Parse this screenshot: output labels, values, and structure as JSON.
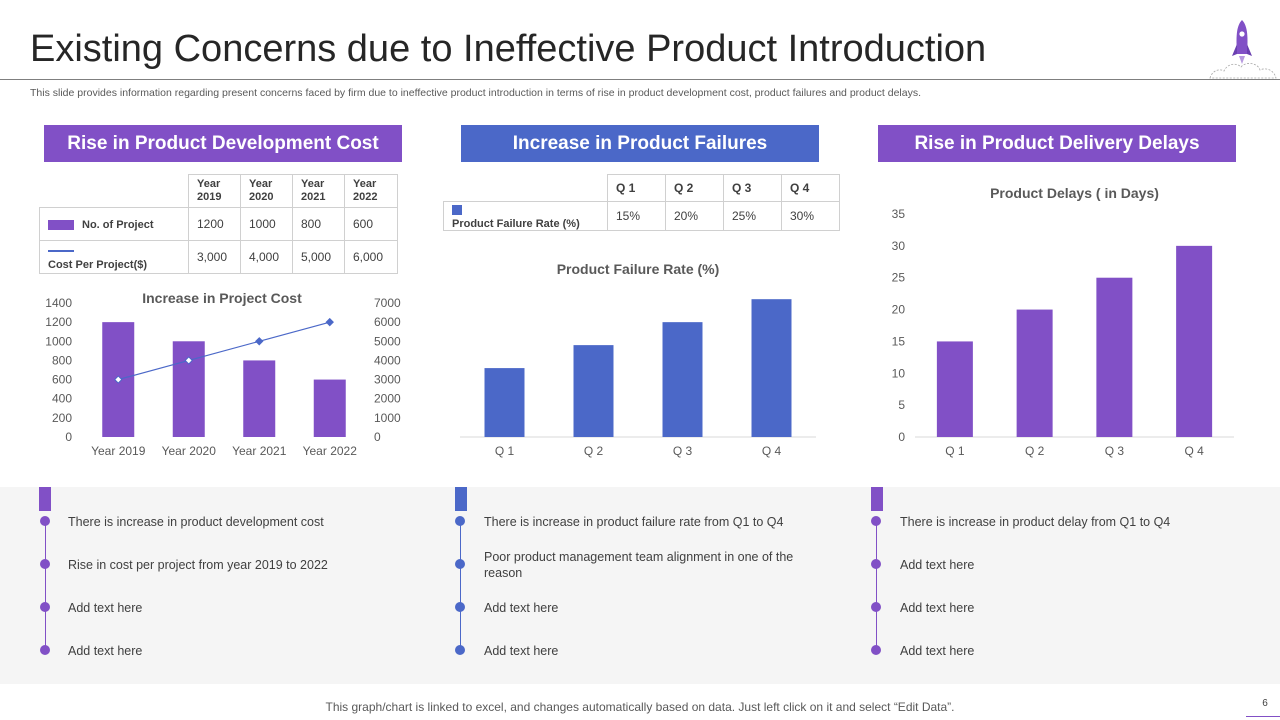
{
  "title": "Existing Concerns due to Ineffective Product Introduction",
  "subtitle": "This slide provides information regarding present concerns faced by firm due to ineffective product introduction in terms of rise in product development cost, product failures and product delays.",
  "colors": {
    "purple": "#8150c6",
    "blue": "#4b68c8",
    "grid": "#d9d9d9",
    "panel_bg": "#f5f5f5"
  },
  "columns": [
    {
      "heading": "Rise in Product Development Cost",
      "table": {
        "headers": [
          "Year 2019",
          "Year 2020",
          "Year 2021",
          "Year 2022"
        ],
        "rows": [
          {
            "label": "No. of Project",
            "values": [
              "1200",
              "1000",
              "800",
              "600"
            ]
          },
          {
            "label": "Cost Per Project($)",
            "values": [
              "3,000",
              "4,000",
              "5,000",
              "6,000"
            ]
          }
        ]
      },
      "points": [
        "There is increase in product development  cost",
        "Rise in cost per project from year 2019 to 2022",
        "Add text here",
        "Add text here"
      ]
    },
    {
      "heading": "Increase in Product Failures",
      "table": {
        "headers": [
          "Q 1",
          "Q 2",
          "Q 3",
          "Q 4"
        ],
        "rows": [
          {
            "label": "Product Failure Rate (%)",
            "values": [
              "15%",
              "20%",
              "25%",
              "30%"
            ]
          }
        ]
      },
      "points": [
        "There is increase in product failure rate from Q1 to Q4",
        "Poor product management team alignment in one of the reason",
        "Add text here",
        "Add text here"
      ]
    },
    {
      "heading": "Rise in Product Delivery Delays",
      "points": [
        "There is increase in product delay from Q1 to Q4",
        "Add text here",
        "Add text here",
        "Add text here"
      ]
    }
  ],
  "chart_data": [
    {
      "type": "bar",
      "title": "Increase in Project Cost",
      "categories": [
        "Year 2019",
        "Year 2020",
        "Year 2021",
        "Year 2022"
      ],
      "series": [
        {
          "name": "No. of Project",
          "type": "bar",
          "axis": "left",
          "values": [
            1200,
            1000,
            800,
            600
          ]
        },
        {
          "name": "Cost Per Project($)",
          "type": "line",
          "axis": "right",
          "values": [
            3000,
            4000,
            5000,
            6000
          ]
        }
      ],
      "ylim": [
        0,
        1400
      ],
      "yticks": [
        "0",
        "200",
        "400",
        "600",
        "800",
        "1000",
        "1200",
        "1400"
      ],
      "y2lim": [
        0,
        7000
      ],
      "y2ticks": [
        "0",
        "1000",
        "2000",
        "3000",
        "4000",
        "5000",
        "6000",
        "7000"
      ],
      "grid": false
    },
    {
      "type": "bar",
      "title": "Product Failure Rate (%)",
      "categories": [
        "Q 1",
        "Q 2",
        "Q 3",
        "Q 4"
      ],
      "series": [
        {
          "name": "Product Failure Rate (%)",
          "values": [
            15,
            20,
            25,
            30
          ]
        }
      ],
      "ylim": [
        0,
        32
      ],
      "axis_labels_shown": false,
      "grid": false
    },
    {
      "type": "bar",
      "title": "Product Delays  ( in Days)",
      "categories": [
        "Q 1",
        "Q 2",
        "Q 3",
        "Q 4"
      ],
      "series": [
        {
          "name": "Product Delays",
          "values": [
            15,
            20,
            25,
            30
          ]
        }
      ],
      "ylim": [
        0,
        35
      ],
      "yticks": [
        "0",
        "5",
        "10",
        "15",
        "20",
        "25",
        "30",
        "35"
      ],
      "grid": false
    }
  ],
  "footer": {
    "note": "This graph/chart is linked to excel, and changes automatically based on data. Just left click on it and select “Edit Data”.",
    "page": "6"
  }
}
